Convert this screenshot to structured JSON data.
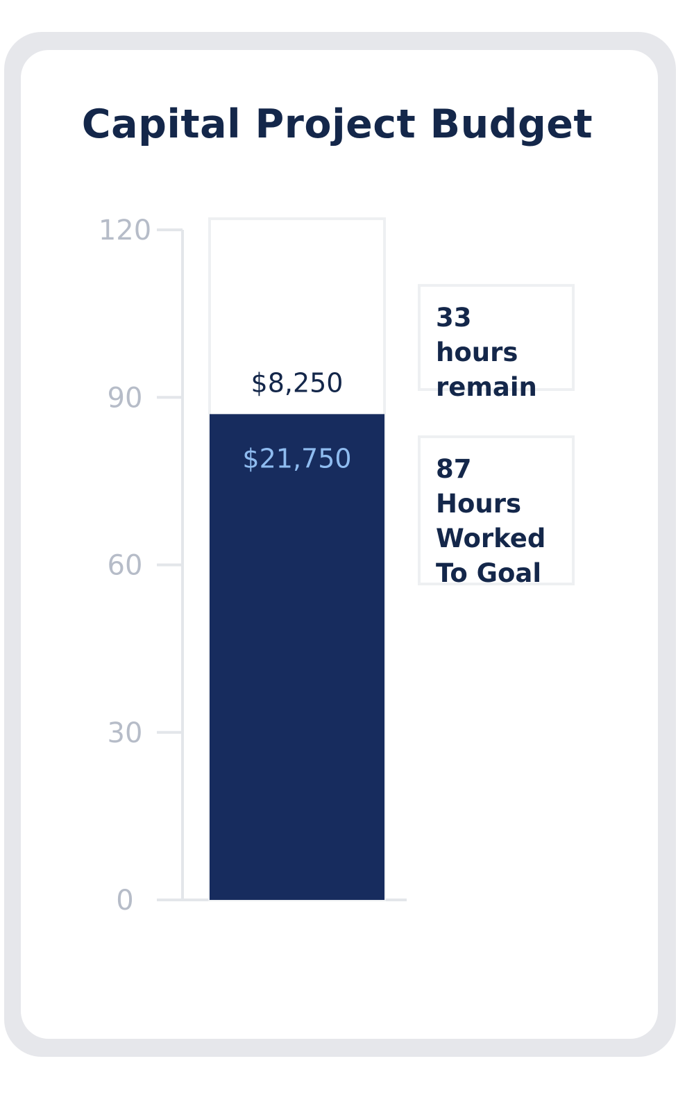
{
  "card": {
    "title": "Capital Project Budget"
  },
  "chart_data": {
    "type": "bar",
    "orientation": "vertical",
    "stacked": true,
    "title": "Capital Project Budget",
    "ylim": [
      0,
      120
    ],
    "yticks": [
      0,
      30,
      60,
      90,
      120
    ],
    "grid": false,
    "segments": [
      {
        "value": 87,
        "label": "$21,750",
        "color": "#172c5e",
        "label_color": "#8fbcf0"
      },
      {
        "value": 33,
        "label": "$8,250",
        "color": "#ffffff",
        "label_color": "#14274a"
      }
    ]
  },
  "callouts": {
    "remain": "33 hours remain",
    "worked": "87 Hours Worked To Goal"
  }
}
